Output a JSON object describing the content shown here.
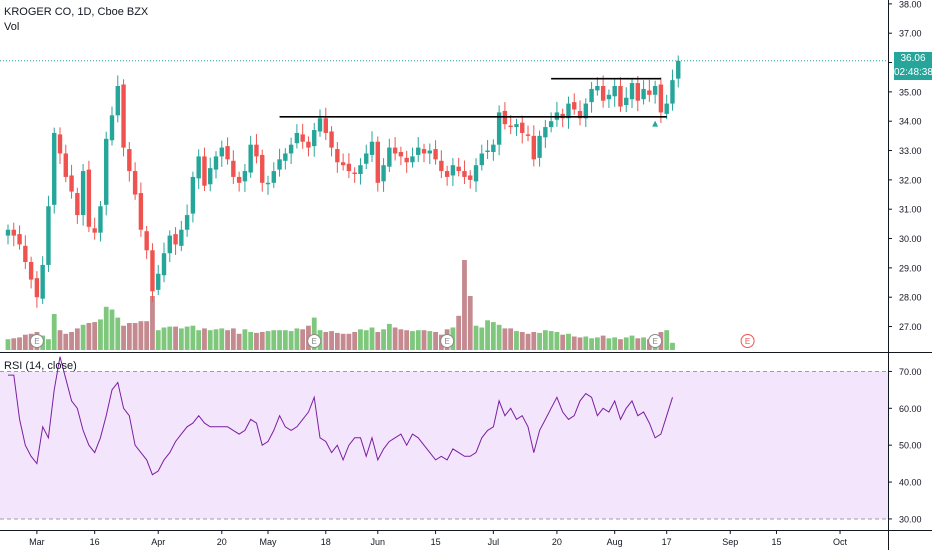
{
  "header": {
    "symbol_title": "KROGER CO, 1D, Cboe BZX",
    "volume_label": "Vol",
    "rsi_label": "RSI (14, close)"
  },
  "price_tags": {
    "last_price": "36.06",
    "countdown": "02:48:38",
    "tag_color": "#26a69a"
  },
  "colors": {
    "up": "#26a69a",
    "down": "#ef5350",
    "vol_up": "#7ec77c",
    "vol_down": "#c48a8f",
    "rsi_line": "#7b1fa2",
    "rsi_band": "#f3e5fc",
    "last_price_line": "#26a69a"
  },
  "earnings_marker_label": "E",
  "chart_data": [
    {
      "type": "candlestick",
      "title": "KROGER CO, 1D, Cboe BZX",
      "ylim": [
        26.2,
        38.2
      ],
      "price_ticks": [
        "38.00",
        "37.00",
        "36.00",
        "35.00",
        "34.00",
        "33.00",
        "32.00",
        "31.00",
        "30.00",
        "29.00",
        "28.00",
        "27.00"
      ],
      "x_ticks": [
        {
          "label": "Mar",
          "bar": 5
        },
        {
          "label": "16",
          "bar": 15
        },
        {
          "label": "Apr",
          "bar": 26
        },
        {
          "label": "20",
          "bar": 37
        },
        {
          "label": "May",
          "bar": 45
        },
        {
          "label": "18",
          "bar": 55
        },
        {
          "label": "Jun",
          "bar": 64
        },
        {
          "label": "15",
          "bar": 74
        },
        {
          "label": "Jul",
          "bar": 84
        },
        {
          "label": "20",
          "bar": 95
        },
        {
          "label": "Aug",
          "bar": 105
        },
        {
          "label": "17",
          "bar": 114
        },
        {
          "label": "Sep",
          "bar": 125
        },
        {
          "label": "15",
          "bar": 133
        },
        {
          "label": "Oct",
          "bar": 144
        }
      ],
      "candles_close": [
        30.3,
        30.1,
        29.8,
        29.2,
        28.6,
        28.0,
        29.1,
        31.1,
        33.6,
        32.9,
        32.1,
        31.6,
        30.8,
        32.3,
        30.4,
        30.2,
        31.1,
        33.4,
        34.2,
        35.2,
        33.1,
        32.3,
        31.5,
        30.3,
        29.6,
        28.2,
        28.8,
        29.5,
        30.1,
        29.8,
        30.3,
        30.8,
        32.1,
        32.8,
        31.8,
        32.4,
        32.8,
        33.1,
        32.7,
        32.1,
        31.9,
        32.3,
        33.2,
        32.8,
        31.9,
        31.9,
        32.3,
        32.7,
        32.9,
        33.2,
        33.6,
        33.3,
        33.1,
        33.7,
        34.1,
        33.6,
        33.1,
        32.6,
        32.5,
        32.3,
        32.2,
        32.5,
        32.9,
        33.3,
        31.9,
        32.5,
        33.1,
        32.9,
        32.8,
        32.6,
        32.8,
        33.1,
        32.9,
        33.0,
        32.7,
        32.3,
        32.1,
        32.5,
        32.3,
        32.1,
        32.0,
        32.5,
        32.9,
        33.0,
        33.2,
        34.3,
        33.9,
        33.8,
        33.9,
        33.6,
        33.5,
        32.7,
        33.5,
        33.8,
        34.0,
        34.3,
        34.1,
        34.6,
        34.4,
        34.1,
        34.6,
        35.1,
        35.2,
        34.7,
        34.9,
        35.2,
        34.5,
        34.8,
        35.3,
        34.7,
        35.1,
        34.9,
        35.2,
        34.3,
        34.6,
        35.4,
        36.06
      ],
      "volume_ylim": [
        0,
        100
      ],
      "volume_values": [
        12,
        13,
        14,
        17,
        18,
        20,
        16,
        12,
        40,
        22,
        18,
        20,
        24,
        28,
        30,
        31,
        34,
        48,
        45,
        36,
        27,
        30,
        30,
        32,
        32,
        60,
        22,
        25,
        26,
        26,
        24,
        26,
        27,
        22,
        24,
        22,
        23,
        24,
        22,
        24,
        18,
        23,
        20,
        19,
        20,
        21,
        22,
        22,
        22,
        21,
        24,
        23,
        27,
        36,
        22,
        20,
        21,
        19,
        18,
        18,
        20,
        23,
        22,
        25,
        20,
        23,
        29,
        25,
        23,
        22,
        21,
        22,
        22,
        21,
        20,
        17,
        23,
        25,
        38,
        102,
        60,
        27,
        25,
        33,
        31,
        28,
        24,
        24,
        21,
        20,
        18,
        20,
        19,
        22,
        21,
        20,
        17,
        18,
        15,
        14,
        15,
        13,
        14,
        16,
        13,
        14,
        12,
        14,
        16,
        13,
        14,
        12,
        14,
        20,
        22,
        8
      ]
    },
    {
      "type": "line",
      "title": "RSI (14, close)",
      "ylim": [
        27,
        75
      ],
      "y_ticks": [
        "70.00",
        "60.00",
        "50.00",
        "40.00",
        "30.00"
      ],
      "band": [
        30,
        70
      ],
      "values": [
        69,
        69,
        57,
        50,
        47,
        45,
        55,
        52,
        65,
        74,
        68,
        62,
        60,
        54,
        50,
        48,
        52,
        58,
        65,
        67,
        60,
        58,
        50,
        48,
        46,
        42,
        43,
        46,
        48,
        51,
        53,
        55,
        56,
        58,
        56,
        55,
        55,
        55,
        55,
        54,
        53,
        54,
        57,
        56,
        50,
        51,
        54,
        58,
        55,
        54,
        55,
        57,
        59,
        63,
        52,
        51,
        48,
        50,
        46,
        50,
        52,
        52,
        47,
        52,
        46,
        49,
        51,
        52,
        53,
        50,
        53,
        52,
        50,
        48,
        46,
        47,
        46,
        49,
        48,
        47,
        47,
        48,
        52,
        54,
        55,
        62,
        58,
        60,
        57,
        58,
        55,
        48,
        54,
        57,
        60,
        63,
        59,
        57,
        58,
        62,
        64,
        63,
        58,
        60,
        59,
        62,
        57,
        60,
        62,
        58,
        59,
        56,
        52,
        53,
        58,
        63
      ]
    },
    {
      "type": "trendlines",
      "lines": [
        {
          "bar_from": 47,
          "bar_to": 114,
          "price": 34.15
        },
        {
          "bar_from": 94,
          "bar_to": 113,
          "price": 35.45
        }
      ],
      "signal_marker": {
        "bar": 112,
        "price": 33.95,
        "shape": "triangle-up"
      },
      "earnings_bars": [
        5,
        53,
        76,
        112,
        128
      ]
    }
  ]
}
